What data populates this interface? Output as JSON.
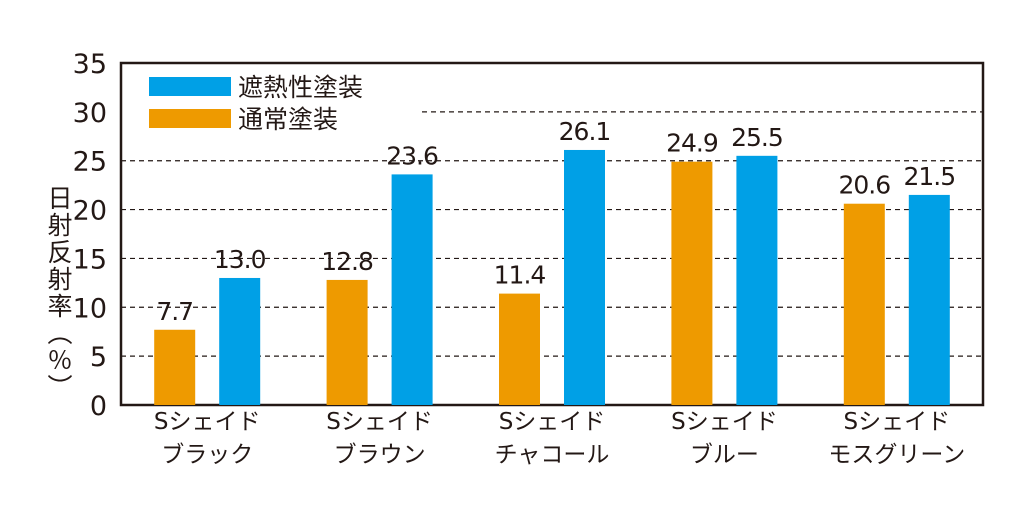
{
  "chart_data": {
    "type": "bar",
    "ylabel": "日射反射率（％）",
    "ylim": [
      0,
      35
    ],
    "yticks": [
      0,
      5,
      10,
      15,
      20,
      25,
      30,
      35
    ],
    "grid": true,
    "legend_position": "top-left",
    "categories": [
      [
        "Sシェイド",
        "ブラック"
      ],
      [
        "Sシェイド",
        "ブラウン"
      ],
      [
        "Sシェイド",
        "チャコール"
      ],
      [
        "Sシェイド",
        "ブルー"
      ],
      [
        "Sシェイド",
        "モスグリーン"
      ]
    ],
    "series": [
      {
        "name": "通常塗装",
        "color": "#ee9a00",
        "values": [
          7.7,
          12.8,
          11.4,
          24.9,
          20.6
        ],
        "labels": [
          "7.7",
          "12.8",
          "11.4",
          "24.9",
          "20.6"
        ]
      },
      {
        "name": "遮熱性塗装",
        "color": "#00a0e6",
        "values": [
          13.0,
          23.6,
          26.1,
          25.5,
          21.5
        ],
        "labels": [
          "13.0",
          "23.6",
          "26.1",
          "25.5",
          "21.5"
        ]
      }
    ],
    "legend_order": [
      1,
      0
    ]
  }
}
